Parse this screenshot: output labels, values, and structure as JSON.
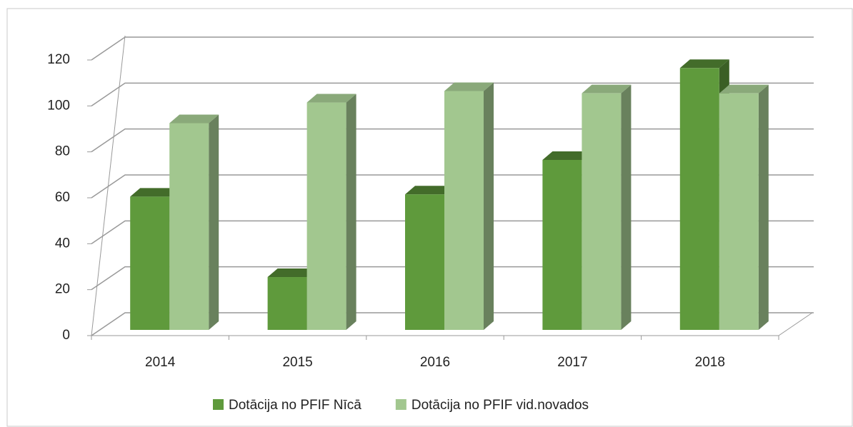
{
  "chart_data": {
    "type": "bar3d",
    "categories": [
      "2014",
      "2015",
      "2016",
      "2017",
      "2018"
    ],
    "series": [
      {
        "name": "Dotācija no PFIF Nīcā",
        "color": "#5f9a3c",
        "values": [
          58,
          23,
          59,
          74,
          114
        ]
      },
      {
        "name": "Dotācija no PFIF vid.novados",
        "color": "#a2c78f",
        "values": [
          90,
          99,
          104,
          103,
          103
        ]
      }
    ],
    "ylim": [
      0,
      120
    ],
    "yticks": [
      0,
      20,
      40,
      60,
      80,
      100,
      120
    ],
    "grid": true,
    "legend": "bottom"
  }
}
